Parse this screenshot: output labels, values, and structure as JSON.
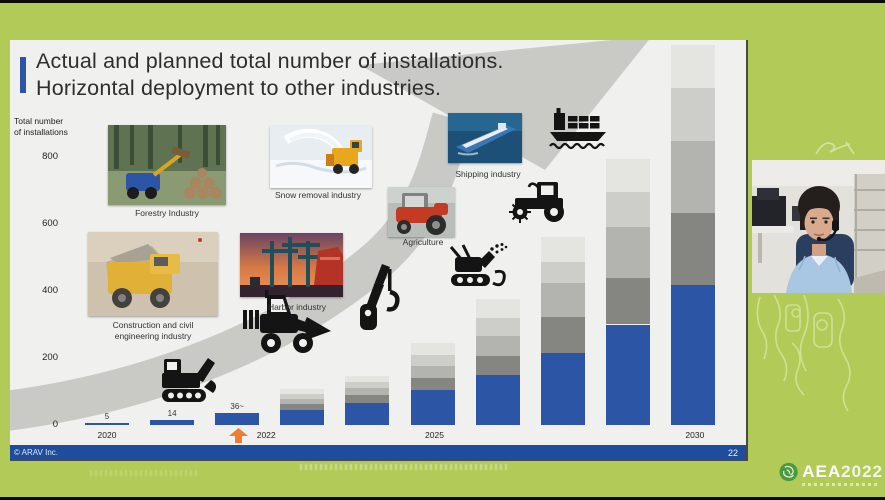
{
  "meta": {
    "copyright": "© ARAV Inc.",
    "page_number": "22"
  },
  "title": {
    "line1": "Actual and planned total number of installations.",
    "line2": "Horizontal deployment to other industries."
  },
  "axis": {
    "ylabel_line1": "Total number",
    "ylabel_line2": "of installations"
  },
  "colors": {
    "background_green": "#b2cb58",
    "slide_bg": "#f0f0ee",
    "bar_blue": "#2d55a5",
    "footer_blue": "#1f4d9c",
    "accent_orange": "#ed7d31",
    "swoosh_gray": "#c9c9c6",
    "gray_segments": [
      "#858582",
      "#b3b3b0",
      "#cdcdca",
      "#e4e4e1"
    ],
    "logo_circle_green": "#4c9a3f"
  },
  "chart_data": {
    "type": "bar",
    "stacked": true,
    "title": "Actual and planned total number of installations.",
    "ylabel": "Total number of installations",
    "yticks": [
      0,
      200,
      400,
      600,
      800
    ],
    "ylim": [
      0,
      1150
    ],
    "grid": false,
    "legend": "none",
    "categories": [
      "2020",
      "",
      "2022",
      "",
      "",
      "2025",
      "",
      "",
      "",
      "2030"
    ],
    "series": [
      {
        "name": "blue-base",
        "values": [
          5,
          14,
          36,
          45,
          66,
          105,
          150,
          215,
          300,
          418
        ]
      },
      {
        "name": "gray-1",
        "values": [
          0,
          0,
          0,
          18,
          25,
          35,
          55,
          107,
          140,
          215
        ]
      },
      {
        "name": "gray-2",
        "values": [
          0,
          0,
          0,
          15,
          20,
          35,
          60,
          101,
          150,
          215
        ]
      },
      {
        "name": "gray-3",
        "values": [
          0,
          0,
          0,
          15,
          18,
          35,
          55,
          63,
          107,
          158
        ]
      },
      {
        "name": "gray-4",
        "values": [
          0,
          0,
          0,
          15,
          18,
          35,
          55,
          75,
          98,
          128
        ]
      }
    ],
    "bar_value_labels": {
      "0": "5",
      "1": "14",
      "2": "36~"
    },
    "x_labels": [
      {
        "label": "2020",
        "bar": 0,
        "dx": 0
      },
      {
        "label": "2022",
        "bar": 2,
        "dx": 29
      },
      {
        "label": "2025",
        "bar": 5,
        "dx": 2
      },
      {
        "label": "2030",
        "bar": 9,
        "dx": 2
      }
    ],
    "annotation": {
      "orange_arrow_under_year": "2022"
    }
  },
  "photos": [
    {
      "id": "forestry",
      "label": "Forestry Industry"
    },
    {
      "id": "snow-removal",
      "label": "Snow removal industry"
    },
    {
      "id": "shipping",
      "label": "Shipping industry"
    },
    {
      "id": "agriculture",
      "label": "Agriculture"
    },
    {
      "id": "construction",
      "label_line1": "Construction and civil",
      "label_line2": "engineering industry"
    },
    {
      "id": "harbor",
      "label": "Harbor industry"
    }
  ],
  "logo": {
    "name": "AEA",
    "year": "2022"
  }
}
